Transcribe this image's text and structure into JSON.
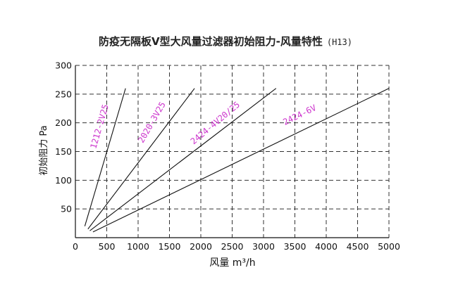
{
  "chart_data": {
    "type": "line",
    "title": "防疫无隔板V型大风量过滤器初始阻力-风量特性",
    "title_suffix": "(H13)",
    "xlabel": "风量 m³/h",
    "ylabel": "初始阻力 Pa",
    "xlim": [
      0,
      5000
    ],
    "ylim": [
      0,
      300
    ],
    "x_ticks": [
      "0",
      "500",
      "1000",
      "1500",
      "2000",
      "2500",
      "3000",
      "3500",
      "4000",
      "4500",
      "5000"
    ],
    "y_ticks": [
      "50",
      "100",
      "150",
      "200",
      "250",
      "300"
    ],
    "grid": true,
    "label_color": "#cc33cc",
    "line_color": "#111111",
    "series": [
      {
        "name": "1212-2V25",
        "x": [
          150,
          800
        ],
        "y": [
          20,
          260
        ]
      },
      {
        "name": "2020-3V25",
        "x": [
          200,
          1900
        ],
        "y": [
          15,
          260
        ]
      },
      {
        "name": "2424-4V20/25",
        "x": [
          230,
          3200
        ],
        "y": [
          12,
          260
        ]
      },
      {
        "name": "2424-6V",
        "x": [
          280,
          5000
        ],
        "y": [
          10,
          260
        ]
      }
    ]
  }
}
